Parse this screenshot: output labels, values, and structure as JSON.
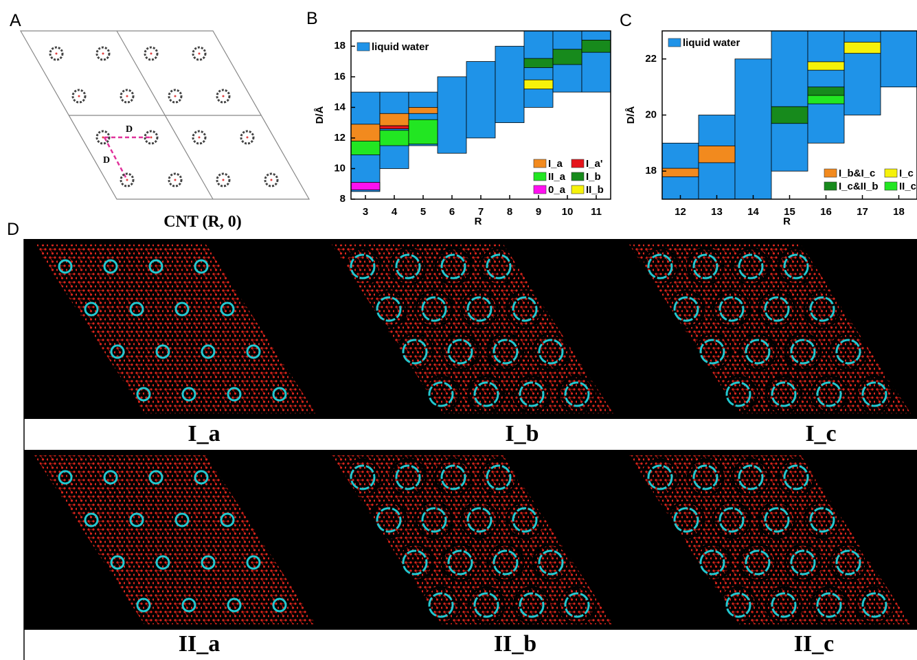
{
  "panel_labels": [
    "A",
    "B",
    "C",
    "D"
  ],
  "panel_a": {
    "distance_labels": [
      "D",
      "D"
    ],
    "caption": "CNT (R, 0)"
  },
  "panel_d": {
    "labels": [
      "I_a",
      "I_b",
      "I_c",
      "II_a",
      "II_b",
      "II_c"
    ]
  },
  "chart_data": [
    {
      "type": "range-bar",
      "xlabel": "R",
      "ylabel": "D/Å",
      "categories": [
        "3",
        "4",
        "5",
        "6",
        "7",
        "8",
        "9",
        "10",
        "11"
      ],
      "ylim": [
        8,
        19
      ],
      "yticks": [
        8,
        10,
        12,
        14,
        16,
        18
      ],
      "series": [
        {
          "name": "liquid water",
          "color": "#1f93e8",
          "values": [
            [
              8.5,
              15
            ],
            [
              10,
              15
            ],
            [
              11.5,
              15
            ],
            [
              11,
              16
            ],
            [
              12,
              17
            ],
            [
              13,
              18
            ],
            [
              14,
              19
            ],
            [
              15,
              19
            ],
            [
              15,
              19
            ]
          ]
        },
        {
          "name": "I_a",
          "color": "#f28a1e",
          "values": [
            [
              11.8,
              12.9
            ],
            [
              12.8,
              13.6
            ],
            [
              13.6,
              14
            ],
            null,
            null,
            null,
            null,
            null,
            null
          ]
        },
        {
          "name": "I_a'",
          "color": "#e5141c",
          "values": [
            null,
            [
              12.6,
              12.8
            ],
            null,
            null,
            null,
            null,
            null,
            null,
            null
          ]
        },
        {
          "name": "II_a",
          "color": "#22e622",
          "values": [
            [
              10.9,
              11.8
            ],
            [
              11.5,
              12.5
            ],
            [
              11.6,
              13.2
            ],
            null,
            null,
            null,
            null,
            null,
            null
          ]
        },
        {
          "name": "I_b",
          "color": "#178a1c",
          "values": [
            null,
            null,
            null,
            null,
            null,
            null,
            [
              16.6,
              17.2
            ],
            [
              16.8,
              17.8
            ],
            [
              17.6,
              18.4
            ]
          ]
        },
        {
          "name": "0_a",
          "color": "#ff10f0",
          "values": [
            [
              8.6,
              9.1
            ],
            null,
            null,
            null,
            null,
            null,
            null,
            null,
            null
          ]
        },
        {
          "name": "II_b",
          "color": "#f6f20a",
          "values": [
            null,
            null,
            null,
            null,
            null,
            null,
            [
              15.2,
              15.8
            ],
            null,
            null
          ]
        }
      ]
    },
    {
      "type": "range-bar",
      "xlabel": "R",
      "ylabel": "D/Å",
      "categories": [
        "12",
        "13",
        "14",
        "15",
        "16",
        "17",
        "18"
      ],
      "ylim": [
        17,
        23
      ],
      "yticks": [
        18,
        20,
        22
      ],
      "series": [
        {
          "name": "liquid water",
          "color": "#1f93e8",
          "values": [
            [
              17,
              19
            ],
            [
              17,
              20
            ],
            [
              17,
              22
            ],
            [
              18,
              23
            ],
            [
              19,
              23
            ],
            [
              20,
              23
            ],
            [
              21,
              23
            ]
          ]
        },
        {
          "name": "I_b&I_c",
          "color": "#f28a1e",
          "values": [
            [
              17.8,
              18.1
            ],
            [
              18.3,
              18.9
            ],
            null,
            null,
            null,
            null,
            null
          ]
        },
        {
          "name": "I_c",
          "color": "#f6f20a",
          "values": [
            null,
            null,
            null,
            null,
            [
              21.6,
              21.9
            ],
            [
              22.2,
              22.6
            ],
            null
          ]
        },
        {
          "name": "I_c&II_b",
          "color": "#178a1c",
          "values": [
            null,
            null,
            null,
            [
              19.7,
              20.3
            ],
            [
              20.7,
              21.0
            ],
            null,
            null
          ]
        },
        {
          "name": "II_c",
          "color": "#22e622",
          "values": [
            null,
            null,
            null,
            null,
            [
              20.4,
              20.7
            ],
            null,
            null
          ]
        }
      ]
    }
  ]
}
